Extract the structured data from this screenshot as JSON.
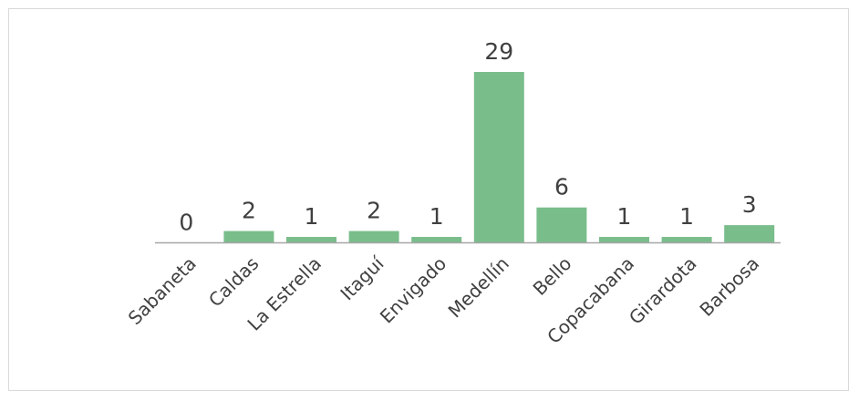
{
  "chart_data": {
    "type": "bar",
    "title": "",
    "xlabel": "",
    "ylabel": "",
    "categories": [
      "Sabaneta",
      "Caldas",
      "La Estrella",
      "Itaguí",
      "Envigado",
      "Medellín",
      "Bello",
      "Copacabana",
      "Girardota",
      "Barbosa"
    ],
    "values": [
      0,
      2,
      1,
      2,
      1,
      29,
      6,
      1,
      1,
      3
    ],
    "ylim": [
      0,
      29
    ],
    "grid": false,
    "legend": "none",
    "data_labels": true,
    "colors": {
      "bar": "#79bd8b",
      "axis": "#a6a6a6",
      "text": "#404040",
      "border": "#d9d9d9"
    }
  }
}
